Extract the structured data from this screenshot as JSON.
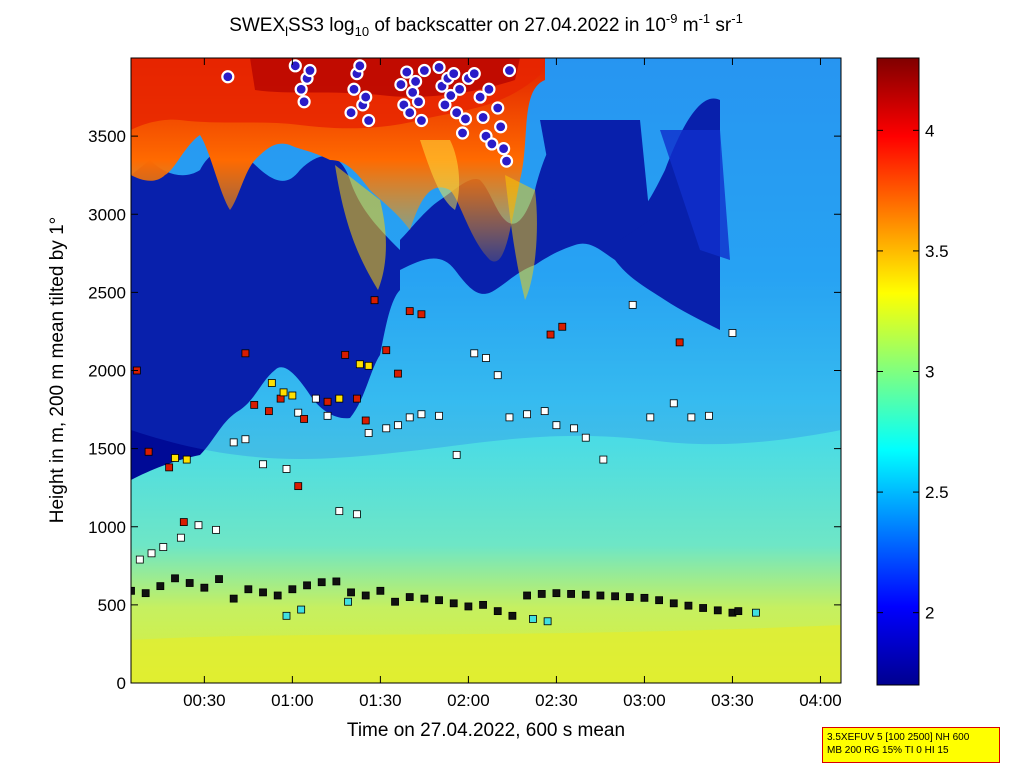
{
  "chart_data": {
    "type": "heatmap",
    "title": {
      "prefix": "SWEX",
      "prefix_sub": "l",
      "main": "SS3 log",
      "log_sub": "10",
      "mid": " of backscatter on 27.04.2022 in 10",
      "exp1": "-9",
      "unit1": " m",
      "exp2": "-1",
      "unit2": " sr",
      "exp3": "-1"
    },
    "xlabel": "Time on 27.04.2022, 600 s mean",
    "ylabel": "Height in m, 200 m mean tilted by 1°",
    "x_ticks": [
      "00:30",
      "01:00",
      "01:30",
      "02:00",
      "02:30",
      "03:00",
      "03:30",
      "04:00"
    ],
    "x_tick_minutes": [
      30,
      60,
      90,
      120,
      150,
      180,
      210,
      240
    ],
    "xlim_minutes": [
      5,
      247
    ],
    "y_ticks": [
      0,
      500,
      1000,
      1500,
      2000,
      2500,
      3000,
      3500
    ],
    "ylim": [
      0,
      4000
    ],
    "colorbar": {
      "ticks": [
        "2",
        "2.5",
        "3",
        "3.5",
        "4"
      ],
      "tick_values": [
        2,
        2.5,
        3,
        3.5,
        4
      ],
      "range": [
        1.7,
        4.3
      ],
      "colormap": "jet"
    },
    "grid": false,
    "series": [
      {
        "marker": "black-square",
        "color": "#111111",
        "x": [
          5,
          10,
          15,
          20,
          25,
          30,
          35,
          40,
          45,
          50,
          55,
          60,
          65,
          70,
          75,
          80,
          85,
          90,
          95,
          100,
          105,
          110,
          115,
          120,
          125,
          130,
          135,
          140,
          145,
          150,
          155,
          160,
          165,
          170,
          175,
          180,
          185,
          190,
          195,
          200,
          205,
          210,
          212
        ],
        "y": [
          590,
          575,
          620,
          670,
          640,
          610,
          665,
          540,
          600,
          580,
          560,
          600,
          625,
          645,
          650,
          580,
          560,
          590,
          520,
          550,
          540,
          530,
          510,
          490,
          500,
          460,
          430,
          560,
          570,
          575,
          570,
          565,
          560,
          555,
          550,
          545,
          530,
          510,
          495,
          480,
          465,
          450,
          460
        ]
      },
      {
        "marker": "white-square",
        "color": "#ffffff",
        "x": [
          8,
          12,
          16,
          22,
          28,
          34,
          40,
          44,
          50,
          58,
          62,
          68,
          72,
          76,
          82,
          86,
          92,
          96,
          100,
          104,
          110,
          116,
          122,
          126,
          130,
          134,
          140,
          146,
          150,
          156,
          160,
          166,
          176,
          182,
          190,
          196,
          202,
          210
        ],
        "y": [
          790,
          830,
          870,
          930,
          1010,
          980,
          1540,
          1560,
          1400,
          1370,
          1730,
          1820,
          1710,
          1100,
          1080,
          1600,
          1630,
          1650,
          1700,
          1720,
          1710,
          1460,
          2110,
          2080,
          1970,
          1700,
          1720,
          1740,
          1650,
          1630,
          1570,
          1430,
          2420,
          1700,
          1790,
          1700,
          1710,
          2240
        ]
      },
      {
        "marker": "red-square",
        "color": "#d81c00",
        "x": [
          7,
          11,
          18,
          23,
          44,
          47,
          52,
          56,
          62,
          64,
          72,
          78,
          82,
          85,
          88,
          92,
          96,
          100,
          104,
          148,
          152,
          192
        ],
        "y": [
          2000,
          1480,
          1380,
          1030,
          2110,
          1780,
          1740,
          1820,
          1260,
          1690,
          1800,
          2100,
          1820,
          1680,
          2450,
          2130,
          1980,
          2380,
          2360,
          2230,
          2280,
          2180
        ]
      },
      {
        "marker": "yellow-square",
        "color": "#ffe000",
        "x": [
          20,
          24,
          53,
          57,
          60,
          76,
          83,
          86
        ],
        "y": [
          1440,
          1430,
          1920,
          1860,
          1840,
          1820,
          2040,
          2030
        ]
      },
      {
        "marker": "cyan-square",
        "color": "#40e0e0",
        "x": [
          58,
          63,
          79,
          142,
          147,
          218
        ],
        "y": [
          430,
          470,
          520,
          410,
          395,
          450
        ]
      },
      {
        "marker": "blue-ring-circle",
        "color": "#2a1cc8",
        "x": [
          38,
          61,
          63,
          64,
          65,
          66,
          80,
          81,
          82,
          83,
          84,
          85,
          86,
          97,
          98,
          99,
          100,
          101,
          102,
          103,
          104,
          105,
          110,
          111,
          112,
          113,
          114,
          115,
          116,
          117,
          118,
          119,
          120,
          122,
          124,
          125,
          126,
          127,
          128,
          130,
          131,
          132,
          133,
          134
        ],
        "y": [
          3880,
          3950,
          3800,
          3720,
          3870,
          3920,
          3650,
          3800,
          3900,
          3950,
          3700,
          3750,
          3600,
          3830,
          3700,
          3910,
          3650,
          3780,
          3850,
          3720,
          3600,
          3920,
          3940,
          3820,
          3700,
          3870,
          3760,
          3900,
          3650,
          3800,
          3520,
          3610,
          3870,
          3900,
          3750,
          3620,
          3500,
          3800,
          3450,
          3680,
          3560,
          3420,
          3340,
          3920
        ]
      }
    ]
  },
  "info_box": {
    "line1": "3.5XEFUV 5 [100 2500] NH 600",
    "line2": "MB 200 RG 15% TI 0 HI 15"
  }
}
